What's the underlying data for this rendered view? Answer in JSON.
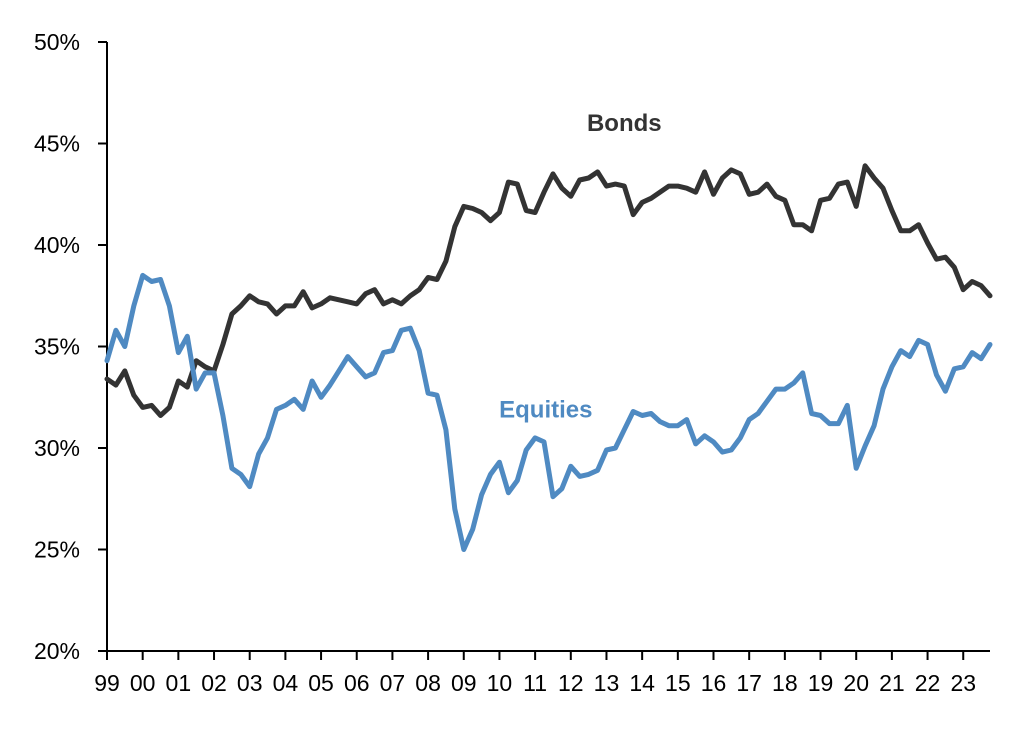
{
  "chart_data": {
    "type": "line",
    "title": "",
    "xlabel": "",
    "ylabel": "",
    "ylim": [
      20,
      50
    ],
    "y_unit": "%",
    "y_ticks": [
      "20%",
      "25%",
      "30%",
      "35%",
      "40%",
      "45%",
      "50%"
    ],
    "y_tick_values": [
      20,
      25,
      30,
      35,
      40,
      45,
      50
    ],
    "x_ticks": [
      "99",
      "00",
      "01",
      "02",
      "03",
      "04",
      "05",
      "06",
      "07",
      "08",
      "09",
      "10",
      "11",
      "12",
      "13",
      "14",
      "15",
      "16",
      "17",
      "18",
      "19",
      "20",
      "21",
      "22",
      "23"
    ],
    "x_tick_values": [
      1999,
      2000,
      2001,
      2002,
      2003,
      2004,
      2005,
      2006,
      2007,
      2008,
      2009,
      2010,
      2011,
      2012,
      2013,
      2014,
      2015,
      2016,
      2017,
      2018,
      2019,
      2020,
      2021,
      2022,
      2023
    ],
    "xlim": [
      1999,
      2023.75
    ],
    "grid": false,
    "legend": "inline labels",
    "x": [
      1999,
      1999.25,
      1999.5,
      1999.75,
      2000,
      2000.25,
      2000.5,
      2000.75,
      2001,
      2001.25,
      2001.5,
      2001.75,
      2002,
      2002.25,
      2002.5,
      2002.75,
      2003,
      2003.25,
      2003.5,
      2003.75,
      2004,
      2004.25,
      2004.5,
      2004.75,
      2005,
      2005.25,
      2005.5,
      2005.75,
      2006,
      2006.25,
      2006.5,
      2006.75,
      2007,
      2007.25,
      2007.5,
      2007.75,
      2008,
      2008.25,
      2008.5,
      2008.75,
      2009,
      2009.25,
      2009.5,
      2009.75,
      2010,
      2010.25,
      2010.5,
      2010.75,
      2011,
      2011.25,
      2011.5,
      2011.75,
      2012,
      2012.25,
      2012.5,
      2012.75,
      2013,
      2013.25,
      2013.5,
      2013.75,
      2014,
      2014.25,
      2014.5,
      2014.75,
      2015,
      2015.25,
      2015.5,
      2015.75,
      2016,
      2016.25,
      2016.5,
      2016.75,
      2017,
      2017.25,
      2017.5,
      2017.75,
      2018,
      2018.25,
      2018.5,
      2018.75,
      2019,
      2019.25,
      2019.5,
      2019.75,
      2020,
      2020.25,
      2020.5,
      2020.75,
      2021,
      2021.25,
      2021.5,
      2021.75,
      2022,
      2022.25,
      2022.5,
      2022.75,
      2023,
      2023.25,
      2023.5,
      2023.75
    ],
    "series": [
      {
        "name": "Bonds",
        "color": "#333333",
        "values": [
          33.4,
          33.1,
          33.8,
          32.6,
          32.0,
          32.1,
          31.6,
          32.0,
          33.3,
          33.0,
          34.3,
          34.0,
          33.8,
          35.1,
          36.6,
          37.0,
          37.5,
          37.2,
          37.1,
          36.6,
          37.0,
          37.0,
          37.7,
          36.9,
          37.1,
          37.4,
          37.3,
          37.2,
          37.1,
          37.6,
          37.8,
          37.1,
          37.3,
          37.1,
          37.5,
          37.8,
          38.4,
          38.3,
          39.2,
          40.9,
          41.9,
          41.8,
          41.6,
          41.2,
          41.6,
          43.1,
          43.0,
          41.7,
          41.6,
          42.6,
          43.5,
          42.8,
          42.4,
          43.2,
          43.3,
          43.6,
          42.9,
          43.0,
          42.9,
          41.5,
          42.1,
          42.3,
          42.6,
          42.9,
          42.9,
          42.8,
          42.6,
          43.6,
          42.5,
          43.3,
          43.7,
          43.5,
          42.5,
          42.6,
          43.0,
          42.4,
          42.2,
          41.0,
          41.0,
          40.7,
          42.2,
          42.3,
          43.0,
          43.1,
          41.9,
          43.9,
          43.3,
          42.8,
          41.7,
          40.7,
          40.7,
          41.0,
          40.1,
          39.3,
          39.4,
          38.9,
          37.8,
          38.2,
          38.0,
          37.5
        ]
      },
      {
        "name": "Equities",
        "color": "#4f8ac2",
        "values": [
          34.3,
          35.8,
          35.0,
          37.0,
          38.5,
          38.2,
          38.3,
          37.0,
          34.7,
          35.5,
          32.9,
          33.7,
          33.7,
          31.6,
          29.0,
          28.7,
          28.1,
          29.7,
          30.5,
          31.9,
          32.1,
          32.4,
          31.9,
          33.3,
          32.5,
          33.1,
          33.8,
          34.5,
          34.0,
          33.5,
          33.7,
          34.7,
          34.8,
          35.8,
          35.9,
          34.8,
          32.7,
          32.6,
          30.9,
          27.0,
          25.0,
          26.0,
          27.7,
          28.7,
          29.3,
          27.8,
          28.4,
          29.9,
          30.5,
          30.3,
          27.6,
          28.0,
          29.1,
          28.6,
          28.7,
          28.9,
          29.9,
          30.0,
          30.9,
          31.8,
          31.6,
          31.7,
          31.3,
          31.1,
          31.1,
          31.4,
          30.2,
          30.6,
          30.3,
          29.8,
          29.9,
          30.5,
          31.4,
          31.7,
          32.3,
          32.9,
          32.9,
          33.2,
          33.7,
          31.7,
          31.6,
          31.2,
          31.2,
          32.1,
          29.0,
          30.1,
          31.1,
          32.9,
          34.0,
          34.8,
          34.5,
          35.3,
          35.1,
          33.6,
          32.8,
          33.9,
          34.0,
          34.7,
          34.4,
          35.1
        ]
      }
    ],
    "annotations": [
      {
        "text": "Bonds",
        "series": "Bonds",
        "x": 2013.5,
        "y": 46
      },
      {
        "text": "Equities",
        "series": "Equities",
        "x": 2011.3,
        "y": 31.9
      }
    ]
  }
}
